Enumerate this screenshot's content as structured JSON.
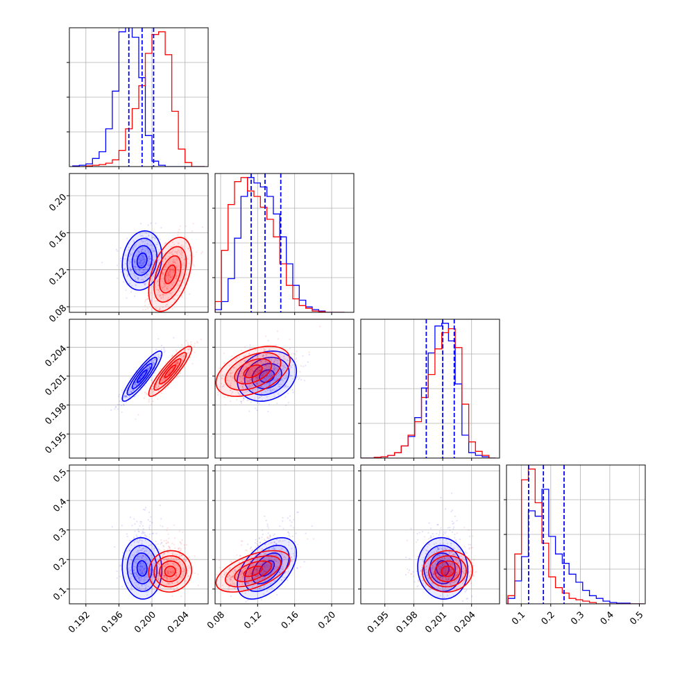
{
  "colors": {
    "blue": "#0000ff",
    "red": "#ff0000",
    "grid": "#b0b0b0"
  },
  "chart_data": {
    "type": "corner",
    "params": [
      {
        "ticks": [
          0.192,
          0.196,
          0.2,
          0.204
        ],
        "tick_labels": [
          "0.192",
          "0.196",
          "0.200",
          "0.204"
        ],
        "range": [
          0.19,
          0.2068
        ]
      },
      {
        "ticks": [
          0.08,
          0.12,
          0.16,
          0.2
        ],
        "tick_labels": [
          "0.08",
          "0.12",
          "0.16",
          "0.20"
        ],
        "range": [
          0.074,
          0.224
        ]
      },
      {
        "ticks": [
          0.195,
          0.198,
          0.201,
          0.204
        ],
        "tick_labels": [
          "0.195",
          "0.198",
          "0.201",
          "0.204"
        ],
        "range": [
          0.1925,
          0.2069
        ]
      },
      {
        "ticks": [
          0.1,
          0.2,
          0.3,
          0.4,
          0.5
        ],
        "tick_labels": [
          "0.1",
          "0.2",
          "0.3",
          "0.4",
          "0.5"
        ],
        "range": [
          0.05,
          0.52
        ]
      }
    ],
    "series": [
      {
        "name": "blue",
        "color": "#0000ff",
        "mean": [
          0.1988,
          0.13,
          0.201,
          0.17
        ],
        "sd": [
          0.0012,
          0.016,
          0.0013,
          0.052
        ],
        "skew": [
          0,
          0,
          0,
          1
        ],
        "quantiles": [
          [
            0.1972,
            0.1988,
            0.2002
          ],
          [
            0.113,
            0.128,
            0.145
          ],
          [
            0.1993,
            0.201,
            0.2022
          ],
          [
            0.125,
            0.175,
            0.245
          ]
        ]
      },
      {
        "name": "red",
        "color": "#ff0000",
        "mean": [
          0.2022,
          0.115,
          0.2015,
          0.16
        ],
        "sd": [
          0.0013,
          0.02,
          0.0013,
          0.035
        ],
        "skew": [
          0,
          0,
          0,
          1
        ]
      }
    ],
    "correlations": [
      {
        "pair": [
          1,
          0
        ],
        "blue": 0.15,
        "red": 0.45
      },
      {
        "pair": [
          2,
          0
        ],
        "blue": 0.9,
        "red": 0.9
      },
      {
        "pair": [
          2,
          1
        ],
        "blue": 0.2,
        "red": 0.45
      },
      {
        "pair": [
          3,
          0
        ],
        "blue": -0.05,
        "red": 0.05
      },
      {
        "pair": [
          3,
          1
        ],
        "blue": 0.5,
        "red": 0.55
      },
      {
        "pair": [
          3,
          2
        ],
        "blue": -0.05,
        "red": 0.05
      }
    ],
    "histograms": [
      {
        "param": 0,
        "bin_edges": [
          0.1904,
          0.1912,
          0.192,
          0.1928,
          0.1936,
          0.1944,
          0.1952,
          0.196,
          0.1968,
          0.1976,
          0.1984,
          0.1992,
          0.2,
          0.2008,
          0.2016,
          0.2024,
          0.2032,
          0.204,
          0.2048,
          0.2056,
          0.2064
        ],
        "blue": [
          0.005,
          0.01,
          0.02,
          0.06,
          0.11,
          0.28,
          0.56,
          1.0,
          1.11,
          0.96,
          0.66,
          0.23,
          0.04,
          0.01,
          0,
          0,
          0,
          0,
          0,
          0
        ],
        "red": [
          0,
          0,
          0.005,
          0.01,
          0.015,
          0.025,
          0.05,
          0.12,
          0.28,
          0.43,
          0.6,
          0.84,
          0.98,
          1.0,
          0.83,
          0.41,
          0.13,
          0.03,
          0,
          0
        ]
      },
      {
        "param": 1,
        "bin_edges": [
          0.074,
          0.081,
          0.088,
          0.095,
          0.102,
          0.109,
          0.116,
          0.123,
          0.13,
          0.137,
          0.144,
          0.151,
          0.158,
          0.165,
          0.172,
          0.179,
          0.186,
          0.193,
          0.2,
          0.207,
          0.214
        ],
        "blue": [
          0.02,
          0.08,
          0.25,
          0.55,
          0.86,
          1.0,
          0.96,
          0.93,
          0.86,
          0.73,
          0.56,
          0.36,
          0.2,
          0.09,
          0.04,
          0.02,
          0.01,
          0,
          0,
          0
        ],
        "red": [
          0.08,
          0.46,
          0.8,
          0.97,
          1.0,
          0.9,
          0.86,
          0.78,
          0.69,
          0.56,
          0.36,
          0.2,
          0.1,
          0.05,
          0.03,
          0.01,
          0.005,
          0,
          0,
          0
        ]
      },
      {
        "param": 2,
        "bin_edges": [
          0.1925,
          0.1932,
          0.1939,
          0.1946,
          0.1953,
          0.196,
          0.1967,
          0.1974,
          0.1981,
          0.1988,
          0.1995,
          0.2002,
          0.2009,
          0.2016,
          0.2023,
          0.203,
          0.2037,
          0.2044,
          0.2051,
          0.2058,
          0.2065
        ],
        "blue": [
          0,
          0,
          0.005,
          0.01,
          0.02,
          0.04,
          0.09,
          0.16,
          0.3,
          0.52,
          0.78,
          0.98,
          1.0,
          0.87,
          0.55,
          0.17,
          0.04,
          0.02,
          0.01,
          0
        ],
        "red": [
          0,
          0,
          0.005,
          0.01,
          0.02,
          0.04,
          0.09,
          0.17,
          0.27,
          0.45,
          0.62,
          0.81,
          0.93,
          0.96,
          0.82,
          0.4,
          0.12,
          0.05,
          0.02,
          0
        ]
      },
      {
        "param": 3,
        "bin_edges": [
          0.055,
          0.078,
          0.101,
          0.124,
          0.147,
          0.17,
          0.193,
          0.216,
          0.239,
          0.262,
          0.285,
          0.308,
          0.331,
          0.354,
          0.377,
          0.4,
          0.423,
          0.446,
          0.469,
          0.492,
          0.515
        ],
        "blue": [
          0.04,
          0.17,
          0.35,
          0.69,
          0.65,
          0.85,
          0.5,
          0.37,
          0.3,
          0.22,
          0.16,
          0.1,
          0.06,
          0.04,
          0.02,
          0.01,
          0.005,
          0.005,
          0,
          0
        ],
        "red": [
          0.06,
          0.37,
          0.92,
          1.0,
          0.75,
          0.45,
          0.2,
          0.12,
          0.08,
          0.04,
          0.03,
          0.02,
          0.01,
          0,
          0,
          0,
          0,
          0,
          0,
          0
        ]
      }
    ],
    "grid": true,
    "legend": "none"
  }
}
